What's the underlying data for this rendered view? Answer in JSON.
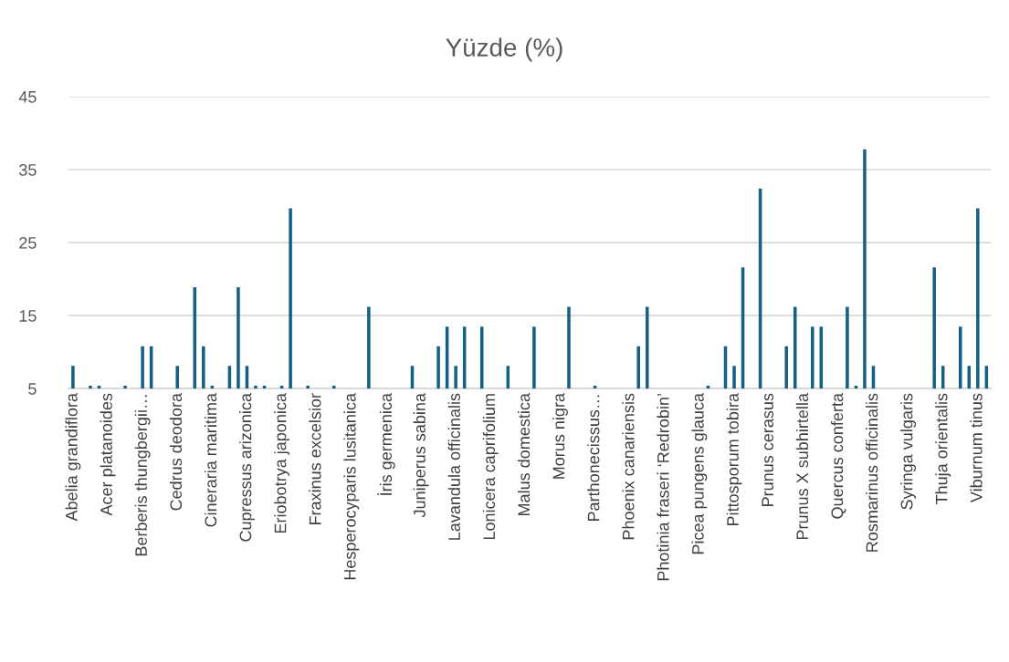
{
  "chart_data": {
    "type": "bar",
    "title": "Yüzde (%)",
    "categories": [
      "Abelia grandiflora",
      null,
      null,
      null,
      "Acer platanoides",
      null,
      null,
      null,
      "Berberis thungbergii…",
      null,
      null,
      null,
      "Cedrus deodora",
      null,
      null,
      null,
      "Cineraria maritima",
      null,
      null,
      null,
      "Cupressus arizonica",
      null,
      null,
      null,
      "Eriobotrya japonica",
      null,
      null,
      null,
      "Fraxinus excelsior",
      null,
      null,
      null,
      "Hesperocyparis lusitanica",
      null,
      null,
      null,
      "İris germenica",
      null,
      null,
      null,
      "Juniperus sabina",
      null,
      null,
      null,
      "Lavandula officinalis",
      null,
      null,
      null,
      "Lonicera caprifolium",
      null,
      null,
      null,
      "Malus domestica",
      null,
      null,
      null,
      "Morus nigra",
      null,
      null,
      null,
      "Parthonecissus…",
      null,
      null,
      null,
      "Phoenix canariensis",
      null,
      null,
      null,
      "Photinia fraseri ‘Redrobin’",
      null,
      null,
      null,
      "Picea pungens glauca",
      null,
      null,
      null,
      "Pittosporum tobira",
      null,
      null,
      null,
      "Prunus cerasus",
      null,
      null,
      null,
      "Prunus X subhirtella",
      null,
      null,
      null,
      "Quercus conferta",
      null,
      null,
      null,
      "Rosmarinus officinalis",
      null,
      null,
      null,
      "Syringa vulgaris",
      null,
      null,
      null,
      "Thuja orientalis",
      null,
      null,
      null,
      "Viburnum tinus",
      null
    ],
    "values": [
      8.1,
      null,
      5.4,
      5.4,
      null,
      null,
      5.4,
      null,
      10.8,
      10.8,
      null,
      null,
      8.1,
      null,
      18.9,
      10.8,
      5.4,
      null,
      8.1,
      18.9,
      8.1,
      5.4,
      5.4,
      null,
      5.4,
      29.7,
      null,
      5.4,
      null,
      null,
      5.4,
      null,
      null,
      null,
      16.2,
      null,
      null,
      null,
      null,
      8.1,
      null,
      null,
      10.8,
      13.5,
      8.1,
      13.5,
      null,
      13.5,
      null,
      null,
      8.1,
      null,
      null,
      13.5,
      null,
      null,
      null,
      16.2,
      null,
      null,
      5.4,
      null,
      null,
      null,
      null,
      10.8,
      16.2,
      null,
      null,
      null,
      null,
      null,
      null,
      5.4,
      null,
      10.8,
      8.1,
      21.6,
      null,
      32.4,
      null,
      null,
      10.8,
      16.2,
      null,
      13.5,
      13.5,
      null,
      null,
      16.2,
      5.4,
      37.8,
      8.1,
      null,
      null,
      null,
      null,
      null,
      null,
      21.6,
      8.1,
      null,
      13.5,
      8.1,
      29.7,
      8.1
    ],
    "color": "#156082",
    "ylim": [
      5,
      45
    ],
    "yticks": [
      5,
      15,
      25,
      35,
      45
    ],
    "grid": "y"
  }
}
